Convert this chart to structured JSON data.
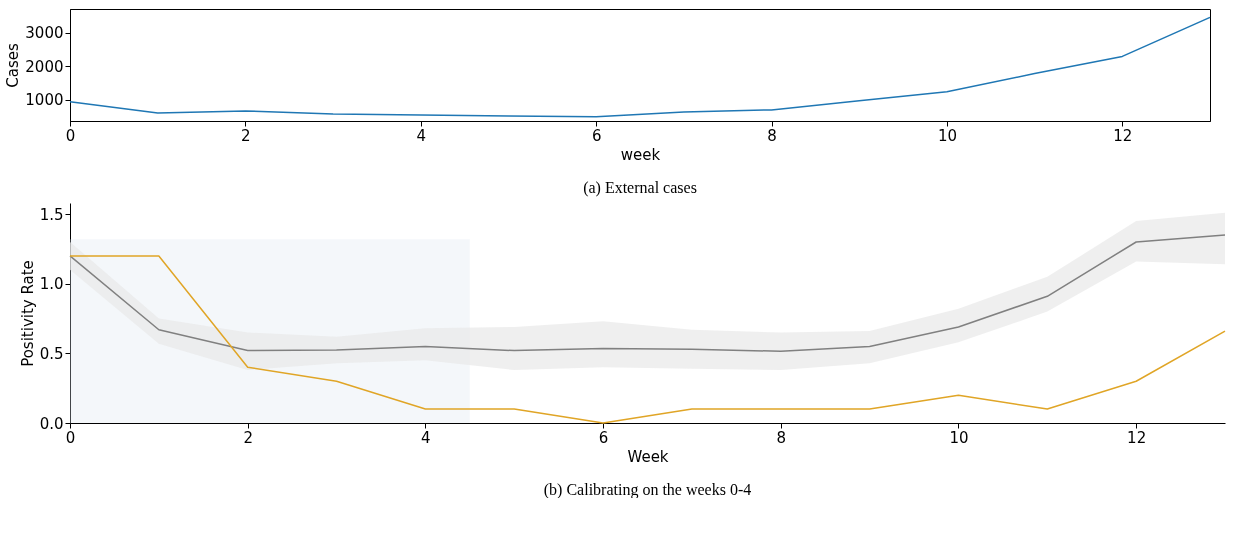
{
  "chart_data": [
    {
      "type": "line",
      "title": "(a) External cases",
      "xlabel": "week",
      "ylabel": "Cases",
      "x": [
        0,
        1,
        2,
        3,
        4,
        5,
        6,
        7,
        8,
        9,
        10,
        11,
        12,
        13
      ],
      "series": [
        {
          "color": "#1f77b4",
          "values": [
            940,
            610,
            670,
            580,
            550,
            520,
            500,
            640,
            700,
            970,
            1240,
            1780,
            2290,
            3450
          ]
        }
      ],
      "xlim": [
        0,
        13
      ],
      "xticks": [
        0,
        2,
        4,
        6,
        8,
        10,
        12
      ],
      "ylim": [
        370,
        3700
      ],
      "yticks": [
        1000,
        2000,
        3000
      ],
      "grid": false
    },
    {
      "type": "line",
      "title": "(b) Calibrating on the weeks 0-4",
      "xlabel": "Week",
      "ylabel": "Positivity Rate",
      "x": [
        0,
        1,
        2,
        3,
        4,
        5,
        6,
        7,
        8,
        9,
        10,
        11,
        12,
        13
      ],
      "series": [
        {
          "color": "#808080",
          "values": [
            1.2,
            0.67,
            0.52,
            0.525,
            0.55,
            0.52,
            0.535,
            0.53,
            0.515,
            0.55,
            0.69,
            0.91,
            1.3,
            1.35
          ],
          "lower": [
            1.1,
            0.57,
            0.38,
            0.43,
            0.45,
            0.38,
            0.4,
            0.39,
            0.38,
            0.43,
            0.58,
            0.8,
            1.16,
            1.14
          ],
          "upper": [
            1.3,
            0.75,
            0.65,
            0.62,
            0.68,
            0.69,
            0.73,
            0.67,
            0.65,
            0.66,
            0.82,
            1.05,
            1.45,
            1.51
          ]
        },
        {
          "color": "#e0a526",
          "values": [
            1.2,
            1.2,
            0.4,
            0.3,
            0.1,
            0.1,
            0.0,
            0.1,
            0.1,
            0.1,
            0.2,
            0.1,
            0.3,
            0.66
          ]
        }
      ],
      "bands": [
        {
          "axis": "x",
          "from": 0,
          "to": 4.5,
          "color": "#dce6f0"
        }
      ],
      "xlim": [
        0,
        13
      ],
      "xticks": [
        0,
        2,
        4,
        6,
        8,
        10,
        12
      ],
      "ylim": [
        0,
        1.58
      ],
      "yticks": [
        {
          "value": 0,
          "label": "0.0"
        },
        {
          "value": 0.5,
          "label": "0.5"
        },
        {
          "value": 1.0,
          "label": "1.0"
        },
        {
          "value": 1.5,
          "label": "1.5"
        }
      ],
      "grid": false
    }
  ]
}
